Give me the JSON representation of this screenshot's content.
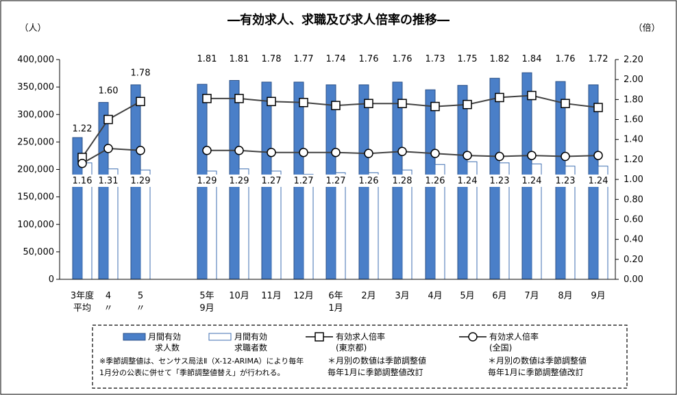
{
  "chart_data": {
    "type": "bar",
    "title": "―有効求人、求職及び求人倍率の推移―",
    "left_unit": "（人）",
    "right_unit": "（倍）",
    "categories": [
      [
        "3年度",
        "平均"
      ],
      [
        "4",
        "〃"
      ],
      [
        "5",
        "〃"
      ],
      [
        "5年",
        "9月"
      ],
      [
        "10月"
      ],
      [
        "11月"
      ],
      [
        "12月"
      ],
      [
        "6年",
        "1月"
      ],
      [
        "2月"
      ],
      [
        "3月"
      ],
      [
        "4月"
      ],
      [
        "5月"
      ],
      [
        "6月"
      ],
      [
        "7月"
      ],
      [
        "8月"
      ],
      [
        "9月"
      ]
    ],
    "y_left": {
      "range": [
        0,
        400000
      ],
      "ticks": [
        "0",
        "50,000",
        "100,000",
        "150,000",
        "200,000",
        "250,000",
        "300,000",
        "350,000",
        "400,000"
      ]
    },
    "y_right": {
      "range": [
        0,
        2.2
      ],
      "ticks": [
        "0.00",
        "0.20",
        "0.40",
        "0.60",
        "0.80",
        "1.00",
        "1.20",
        "1.40",
        "1.60",
        "1.80",
        "2.00",
        "2.20"
      ]
    },
    "series": [
      {
        "name": "月間有効求人数",
        "kind": "bar",
        "color": "#4a7fc8",
        "values": [
          258000,
          322000,
          354000,
          355000,
          362000,
          359000,
          359000,
          354000,
          354000,
          359000,
          345000,
          353000,
          366000,
          376000,
          360000,
          354000
        ]
      },
      {
        "name": "月間有効求職者数",
        "kind": "bar",
        "color": "#ffffff",
        "values": [
          212000,
          201000,
          199000,
          197000,
          201000,
          197000,
          191000,
          194000,
          194000,
          199000,
          209000,
          214000,
          212000,
          210000,
          206000,
          206000
        ]
      },
      {
        "name": "有効求人倍率（東京都）",
        "kind": "line",
        "marker": "square",
        "color": "#404040",
        "values": [
          1.22,
          1.6,
          1.78,
          1.81,
          1.81,
          1.78,
          1.77,
          1.74,
          1.76,
          1.76,
          1.73,
          1.75,
          1.82,
          1.84,
          1.76,
          1.72
        ],
        "labels": [
          "1.22",
          "1.60",
          "1.78",
          "1.81",
          "1.81",
          "1.78",
          "1.77",
          "1.74",
          "1.76",
          "1.76",
          "1.73",
          "1.75",
          "1.82",
          "1.84",
          "1.76",
          "1.72"
        ]
      },
      {
        "name": "有効求人倍率（全国）",
        "kind": "line",
        "marker": "circle",
        "color": "#404040",
        "values": [
          1.16,
          1.31,
          1.29,
          1.29,
          1.29,
          1.27,
          1.27,
          1.27,
          1.26,
          1.28,
          1.26,
          1.24,
          1.23,
          1.24,
          1.23,
          1.24
        ],
        "labels": [
          "1.16",
          "1.31",
          "1.29",
          "1.29",
          "1.29",
          "1.27",
          "1.27",
          "1.27",
          "1.26",
          "1.28",
          "1.26",
          "1.24",
          "1.23",
          "1.24",
          "1.23",
          "1.24"
        ]
      }
    ],
    "legend": {
      "items": [
        {
          "lines": [
            "月間有効",
            "求人数"
          ]
        },
        {
          "lines": [
            "月間有効",
            "求職者数"
          ]
        },
        {
          "lines": [
            "有効求人倍率",
            "(東京都)"
          ]
        },
        {
          "lines": [
            "有効求人倍率",
            "(全国)"
          ]
        }
      ],
      "notes": [
        "※季節調整値は、センサス局法Ⅱ（X-12-ARIMA）により毎年",
        "1月分の公表に併せて「季節調整値替え」が行われる。",
        "＊月別の数値は季節調整値",
        "毎年1月に季節調整値改訂",
        "＊月別の数値は季節調整値",
        "毎年1月に季節調整値改訂"
      ]
    }
  }
}
